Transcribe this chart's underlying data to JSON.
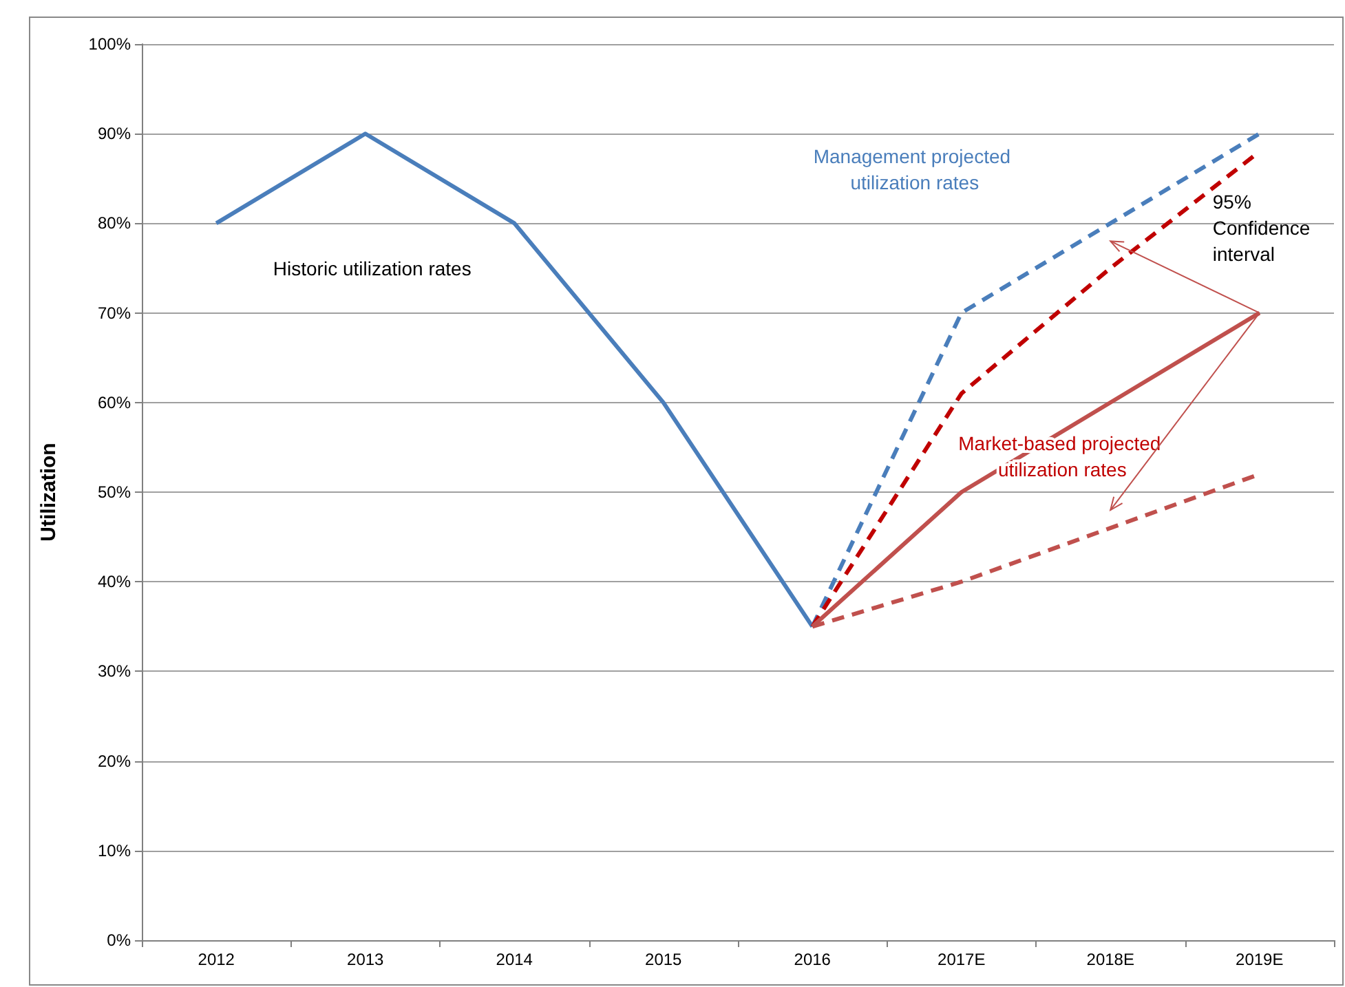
{
  "chart_data": {
    "type": "line",
    "ylabel": "Utilization",
    "categories": [
      "2012",
      "2013",
      "2014",
      "2015",
      "2016",
      "2017E",
      "2018E",
      "2019E"
    ],
    "series": [
      {
        "color": "#4a7ebb",
        "line_style": "solid",
        "values": [
          80,
          90,
          80,
          60,
          35,
          null,
          null,
          null
        ]
      },
      {
        "color": "#4a7ebb",
        "line_style": "dashed",
        "values": [
          null,
          null,
          null,
          null,
          35,
          70,
          80,
          90
        ]
      },
      {
        "color": "#c00000",
        "line_style": "dashed",
        "values": [
          null,
          null,
          null,
          null,
          35,
          61,
          75,
          88
        ]
      },
      {
        "color": "#c0504d",
        "line_style": "solid",
        "values": [
          null,
          null,
          null,
          null,
          35,
          50,
          60,
          70
        ]
      },
      {
        "color": "#c0504d",
        "line_style": "dashed",
        "values": [
          null,
          null,
          null,
          null,
          35,
          40,
          46,
          52
        ]
      }
    ],
    "ylim": [
      0,
      100
    ],
    "yticks": [
      {
        "value": 0,
        "label": "0%"
      },
      {
        "value": 10,
        "label": "10%"
      },
      {
        "value": 20,
        "label": "20%"
      },
      {
        "value": 30,
        "label": "30%"
      },
      {
        "value": 40,
        "label": "40%"
      },
      {
        "value": 50,
        "label": "50%"
      },
      {
        "value": 60,
        "label": "60%"
      },
      {
        "value": 70,
        "label": "70%"
      },
      {
        "value": 80,
        "label": "80%"
      },
      {
        "value": 90,
        "label": "90%"
      },
      {
        "value": 100,
        "label": "100%"
      }
    ],
    "grid": "y",
    "marker": "none",
    "annotations": [
      "Historic utilization rates",
      "Management projected utilization rates",
      "Market-based projected utilization rates",
      "95% Confidence interval"
    ]
  }
}
